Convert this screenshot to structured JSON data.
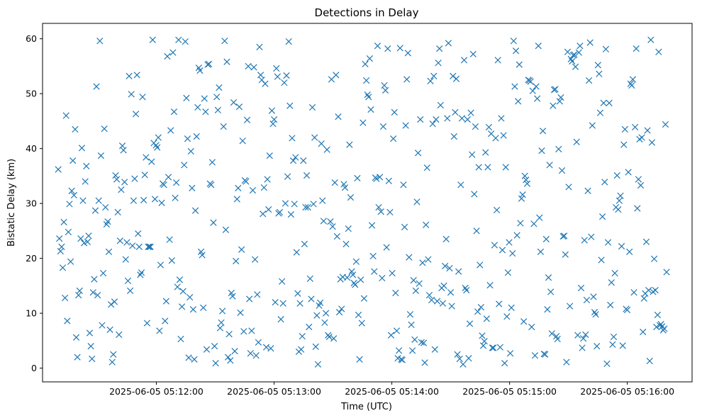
{
  "chart_data": {
    "type": "scatter",
    "title": "Detections in Delay",
    "xlabel": "Time (UTC)",
    "ylabel": "Bistatic Delay (km)",
    "marker": "x",
    "marker_color": "#1f77b4",
    "grid": false,
    "x_start": "2025-06-05 05:11:10",
    "x_end": "2025-06-05 05:16:20",
    "xlim": [
      "2025-06-05 05:11:02",
      "2025-06-05 05:16:33"
    ],
    "ylim": [
      -2.5,
      62.8
    ],
    "x_ticks": [
      "2025-06-05 05:12:00",
      "2025-06-05 05:13:00",
      "2025-06-05 05:14:00",
      "2025-06-05 05:15:00",
      "2025-06-05 05:16:00"
    ],
    "y_ticks": [
      0,
      10,
      20,
      30,
      40,
      50,
      60
    ],
    "delay_km": [
      36.2,
      23.6,
      21.3,
      22.1,
      18.3,
      26.6,
      12.8,
      46.0,
      8.6,
      24.8,
      29.9,
      19.4,
      32.3,
      37.8,
      31.5,
      43.5,
      5.6,
      2.0,
      13.3,
      14.1,
      23.6,
      40.1,
      30.5,
      22.8,
      34.0,
      36.8,
      23.0,
      24.1,
      6.4,
      4.0,
      1.7,
      13.8,
      16.2,
      28.7,
      51.3,
      13.3,
      30.5,
      59.6,
      38.7,
      7.8,
      17.3,
      43.6,
      29.3,
      26.2,
      26.7,
      21.2,
      7.0,
      11.6,
      1.1,
      2.5,
      12.1,
      35.1,
      34.4,
      28.4,
      6.1,
      23.2,
      32.5,
      40.5,
      39.7,
      33.9,
      19.8,
      22.9,
      15.9,
      53.2,
      14.1,
      49.9,
      22.3,
      30.5,
      34.5,
      46.3,
      53.4,
      24.5,
      22.1,
      17.0,
      17.4,
      49.4,
      30.6,
      35.2,
      38.4,
      8.2,
      22.1,
      22.1,
      22.1,
      37.6,
      59.8,
      41.0,
      30.8,
      40.6,
      40.2,
      42.0,
      6.8,
      18.8,
      30.1,
      33.6,
      33.4,
      8.6,
      12.2,
      56.8,
      34.8,
      23.4,
      43.3,
      19.6,
      57.5,
      46.7,
      31.0,
      33.8,
      14.8,
      59.8,
      16.1,
      5.3,
      11.2,
      14.0,
      37.0,
      59.5,
      49.2,
      41.8,
      1.9,
      12.9,
      39.5,
      32.8,
      10.7,
      1.6,
      28.7,
      42.2,
      47.5,
      54.7,
      54.2,
      21.2,
      20.6,
      11.0,
      49.1,
      46.7,
      3.4,
      55.3,
      55.4,
      33.6,
      33.4,
      37.5,
      26.5,
      4.0,
      0.9,
      49.4,
      47.0,
      51.1,
      7.3,
      8.3,
      10.4,
      44.0,
      59.6,
      25.2,
      55.8,
      2.0,
      6.2,
      1.4,
      13.7,
      13.1,
      48.4,
      3.1,
      19.5,
      30.8,
      32.8,
      47.6,
      10.1,
      21.6,
      41.4,
      6.7,
      34.2,
      34.0,
      45.2,
      55.0,
      12.6,
      2.7,
      6.8,
      32.4,
      54.8,
      19.8,
      2.3,
      13.4,
      4.7,
      58.5,
      53.4,
      52.5,
      28.1,
      32.9,
      51.8,
      3.8,
      34.4,
      28.9,
      38.7,
      3.6,
      46.9,
      44.5,
      45.3,
      12.0,
      54.6,
      53.1,
      28.2,
      28.4,
      8.9,
      15.8,
      11.8,
      52.0,
      30.0,
      53.3,
      34.9,
      59.5,
      47.8,
      28.0,
      41.9,
      37.8,
      29.9,
      38.4,
      21.1,
      13.6,
      3.0,
      11.8,
      3.4,
      5.8,
      37.8,
      22.6,
      29.3,
      35.1,
      29.3,
      7.5,
      16.3,
      12.6,
      47.5,
      29.9,
      42.0,
      3.9,
      9.6,
      0.7,
      11.4,
      11.9,
      40.9,
      30.5,
      26.8,
      8.3,
      10.0,
      39.8,
      6.0,
      5.7,
      26.7,
      52.6,
      25.8,
      5.4,
      33.8,
      53.4,
      24.0,
      45.8,
      10.2,
      16.2,
      10.8,
      16.6,
      33.5,
      32.9,
      22.6,
      16.5,
      25.4,
      40.7,
      31.1,
      17.6,
      17.0,
      15.5,
      15.2,
      19.4,
      34.6,
      9.7,
      1.6,
      16.1,
      8.2,
      44.7,
      12.7,
      55.4,
      52.4,
      49.8,
      49.4,
      56.4,
      47.1,
      26.0,
      20.4,
      17.6,
      34.7,
      34.5,
      58.7,
      29.3,
      34.8,
      28.5,
      16.4,
      44.0,
      51.5,
      50.6,
      22.0,
      58.2,
      34.1,
      28.4,
      6.0,
      17.3,
      41.8,
      46.6,
      13.7,
      6.8,
      1.8,
      3.2,
      58.3,
      1.6,
      1.5,
      33.4,
      25.7,
      44.2,
      52.6,
      57.4,
      20.2,
      9.8,
      7.9,
      3.2,
      16.0,
      5.2,
      14.1,
      30.3,
      39.2,
      15.4,
      45.3,
      4.7,
      19.2,
      4.6,
      1.0,
      26.1,
      36.5,
      19.8,
      13.3,
      52.3,
      12.4,
      44.5,
      53.2,
      3.4,
      45.3,
      12.2,
      55.6,
      58.2,
      47.9,
      14.6,
      11.8,
      15.0,
      18.6,
      23.5,
      45.5,
      59.2,
      18.2,
      13.8,
      11.3,
      53.2,
      42.2,
      46.6,
      52.7,
      2.5,
      17.6,
      1.7,
      33.4,
      45.5,
      0.7,
      56.1,
      14.6,
      14.2,
      45.3,
      1.8,
      8.1,
      46.5,
      38.9,
      57.2,
      31.7,
      44.0,
      25.0,
      10.3,
      36.6,
      18.8,
      11.1,
      5.9,
      4.1,
      4.9,
      39.3,
      9.0,
      36.6,
      43.9,
      15.1,
      42.7,
      3.7,
      3.7,
      22.4,
      41.9,
      28.8,
      56.1,
      11.7,
      3.8,
      45.5,
      21.5,
      42.4,
      0.9,
      36.6,
      9.4,
      17.4,
      22.9,
      2.7,
      11.0,
      20.9,
      59.6,
      51.3,
      57.8,
      24.2,
      48.6,
      55.3,
      26.4,
      30.9,
      31.6,
      8.5,
      35.0,
      34.3,
      33.6,
      52.5,
      52.4,
      52.2,
      7.5,
      50.5,
      26.3,
      2.3,
      51.3,
      49.1,
      58.7,
      27.4,
      21.2,
      39.6,
      43.2,
      2.6,
      2.5,
      23.5,
      10.7,
      16.5,
      37.0,
      13.9,
      6.3,
      47.8,
      50.7,
      50.8,
      5.8,
      5.3,
      39.9,
      48.6,
      49.3,
      36.0,
      24.0,
      24.1,
      20.7,
      1.1,
      57.6,
      33.0,
      11.3,
      56.3,
      55.9,
      57.0,
      57.1,
      54.9,
      41.2,
      6.0,
      57.5,
      58.7,
      14.6,
      3.7,
      5.4,
      23.3,
      6.1,
      12.4,
      32.3,
      52.4,
      59.3,
      23.9,
      44.2,
      13.0,
      10.2,
      9.8,
      4.0,
      55.2,
      53.6,
      46.5,
      19.7,
      27.6,
      48.3,
      33.9,
      58.1,
      0.8,
      22.9,
      48.3,
      11.5,
      15.6,
      4.3,
      5.7,
      17.3,
      29.3,
      35.1,
      28.9,
      30.5,
      31.4,
      22.2,
      4.1,
      40.7,
      43.5,
      10.8,
      10.6,
      35.7,
      21.2,
      51.8,
      51.5,
      52.6,
      13.8,
      43.9,
      58.2,
      29.1,
      34.4,
      41.7,
      33.3,
      42.0,
      6.6,
      12.7,
      13.6,
      23.0,
      43.3,
      14.2,
      1.3,
      59.8,
      41.1,
      13.9,
      19.9,
      14.2,
      7.5,
      9.7,
      57.6,
      7.8,
      8.0,
      7.6,
      6.9,
      7.2,
      44.4,
      17.5
    ]
  }
}
